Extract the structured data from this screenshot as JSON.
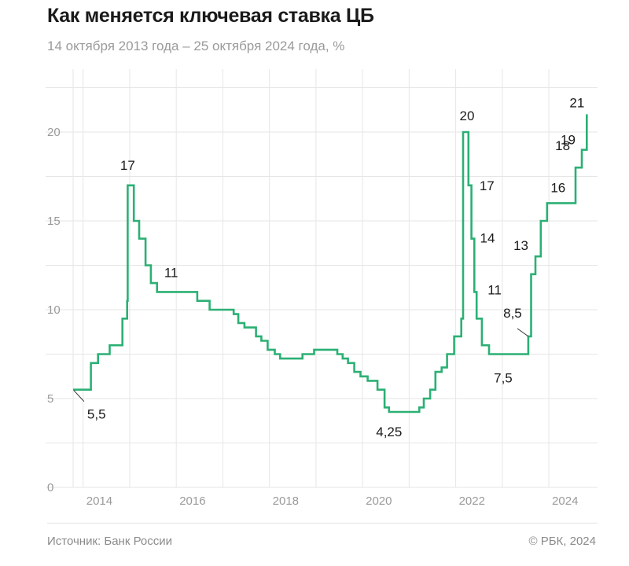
{
  "header": {
    "title": "Как меняется ключевая ставка ЦБ",
    "subtitle": "14 октября 2013 года – 25 октября 2024 года, %"
  },
  "footer": {
    "source": "Источник: Банк России",
    "copyright": "© РБК, 2024"
  },
  "colors": {
    "line": "#2bb074",
    "grid": "#e6e6e6",
    "axis_text": "#9a9a9a",
    "label_text": "#1a1a1a"
  },
  "chart_data": {
    "type": "line",
    "step": true,
    "xlim": [
      "2013-10-14",
      "2024-10-25"
    ],
    "ylim": [
      0,
      22
    ],
    "yticks": [
      0,
      5,
      10,
      15,
      20
    ],
    "xticks": [
      "2014",
      "2016",
      "2018",
      "2020",
      "2022",
      "2024"
    ],
    "grid": true,
    "series": [
      {
        "x": [
          "2013-10-14",
          "2014-03-03",
          "2014-04-28",
          "2014-07-28",
          "2014-11-05",
          "2014-12-12",
          "2014-12-16",
          "2015-02-02",
          "2015-03-16",
          "2015-05-05",
          "2015-06-16",
          "2015-08-03",
          "2016-06-14",
          "2016-09-19",
          "2017-03-27",
          "2017-05-02",
          "2017-06-19",
          "2017-09-18",
          "2017-10-30",
          "2017-12-18",
          "2018-02-12",
          "2018-03-26",
          "2018-09-17",
          "2018-12-17",
          "2019-06-17",
          "2019-07-29",
          "2019-09-09",
          "2019-10-28",
          "2019-12-16",
          "2020-02-10",
          "2020-04-27",
          "2020-06-22",
          "2020-07-27",
          "2021-03-22",
          "2021-04-26",
          "2021-06-15",
          "2021-07-26",
          "2021-09-13",
          "2021-10-25",
          "2021-12-20",
          "2022-02-14",
          "2022-02-28",
          "2022-04-11",
          "2022-05-04",
          "2022-05-27",
          "2022-06-14",
          "2022-07-25",
          "2022-09-19",
          "2023-07-24",
          "2023-08-15",
          "2023-09-18",
          "2023-10-30",
          "2023-12-18",
          "2024-07-29",
          "2024-09-16",
          "2024-10-25"
        ],
        "values": [
          5.5,
          7,
          7.5,
          8,
          9.5,
          10.5,
          17,
          15,
          14,
          12.5,
          11.5,
          11,
          10.5,
          10,
          9.75,
          9.25,
          9,
          8.5,
          8.25,
          7.75,
          7.5,
          7.25,
          7.5,
          7.75,
          7.5,
          7.25,
          7,
          6.5,
          6.25,
          6,
          5.5,
          4.5,
          4.25,
          4.5,
          5,
          5.5,
          6.5,
          6.75,
          7.5,
          8.5,
          9.5,
          20,
          17,
          14,
          11,
          9.5,
          8,
          7.5,
          8.5,
          12,
          13,
          15,
          16,
          18,
          19,
          21
        ]
      }
    ],
    "annotations": [
      {
        "text": "5,5",
        "x": "2013-10-14",
        "y": 5.5
      },
      {
        "text": "17",
        "x": "2014-12-16",
        "y": 17
      },
      {
        "text": "11",
        "x": "2015-08-03",
        "y": 11
      },
      {
        "text": "4,25",
        "x": "2020-07-27",
        "y": 4.25
      },
      {
        "text": "20",
        "x": "2022-02-28",
        "y": 20
      },
      {
        "text": "17",
        "x": "2022-04-11",
        "y": 17
      },
      {
        "text": "14",
        "x": "2022-05-04",
        "y": 14
      },
      {
        "text": "11",
        "x": "2022-05-27",
        "y": 11
      },
      {
        "text": "7,5",
        "x": "2022-09-19",
        "y": 7.5
      },
      {
        "text": "8,5",
        "x": "2023-07-24",
        "y": 8.5
      },
      {
        "text": "13",
        "x": "2023-09-18",
        "y": 13
      },
      {
        "text": "16",
        "x": "2023-12-18",
        "y": 16
      },
      {
        "text": "18",
        "x": "2024-07-29",
        "y": 18
      },
      {
        "text": "19",
        "x": "2024-09-16",
        "y": 19
      },
      {
        "text": "21",
        "x": "2024-10-25",
        "y": 21
      }
    ]
  }
}
